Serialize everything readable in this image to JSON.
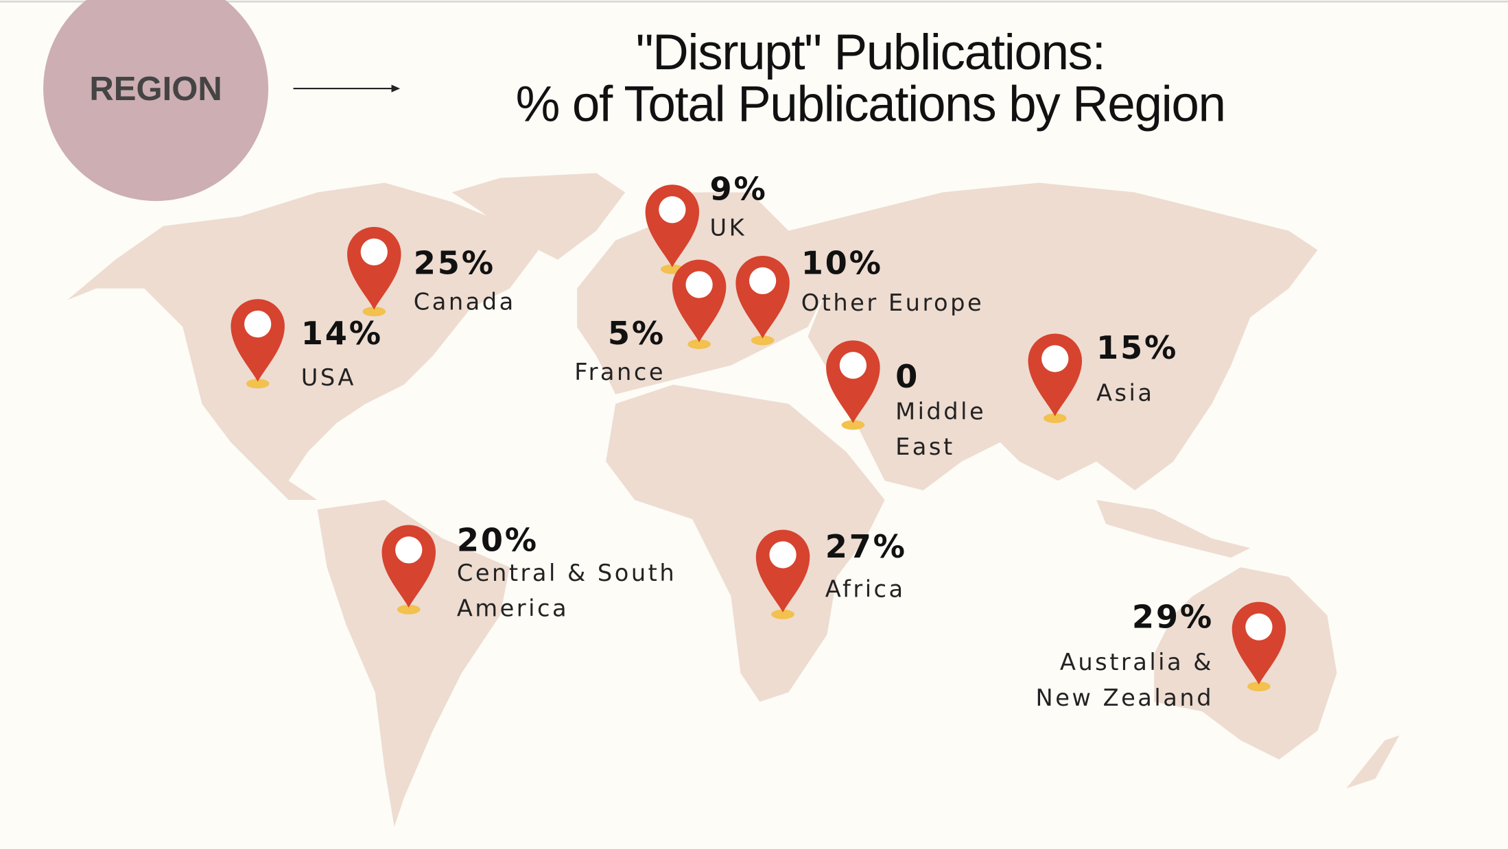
{
  "badge": "REGION",
  "title": {
    "line1": "\"Disrupt\" Publications:",
    "line2": "% of Total Publications by Region"
  },
  "markers": [
    {
      "value": "25%",
      "label_lines": [
        "Canada"
      ]
    },
    {
      "value": "14%",
      "label_lines": [
        "USA"
      ]
    },
    {
      "value": "9%",
      "label_lines": [
        "UK"
      ]
    },
    {
      "value": "5%",
      "label_lines": [
        "France"
      ]
    },
    {
      "value": "10%",
      "label_lines": [
        "Other Europe"
      ]
    },
    {
      "value": "0",
      "label_lines": [
        "Middle",
        "East"
      ]
    },
    {
      "value": "15%",
      "label_lines": [
        "Asia"
      ]
    },
    {
      "value": "20%",
      "label_lines": [
        "Central & South",
        "America"
      ]
    },
    {
      "value": "27%",
      "label_lines": [
        "Africa"
      ]
    },
    {
      "value": "29%",
      "label_lines": [
        "Australia &",
        "New Zealand"
      ]
    }
  ]
}
